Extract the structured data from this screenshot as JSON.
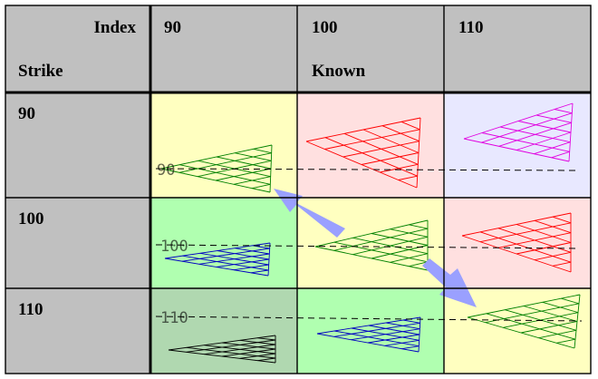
{
  "header": {
    "corner_top": "Index",
    "corner_bottom": "Strike",
    "columns": [
      {
        "label": "90",
        "sublabel": ""
      },
      {
        "label": "100",
        "sublabel": "Known"
      },
      {
        "label": "110",
        "sublabel": ""
      }
    ],
    "rows": [
      "90",
      "100",
      "110"
    ]
  },
  "cell_labels": [
    "90",
    "100",
    "110"
  ],
  "colors": {
    "header_bg": "#c0c0c0",
    "yellow": "#ffffc0",
    "pink": "#ffe0e0",
    "lavender": "#e8e8ff",
    "light_green": "#b0ffb0",
    "sage": "#b0d8b0",
    "green_line": "#008000",
    "red_line": "#ff0000",
    "magenta_line": "#e000e0",
    "blue_line": "#0000c0",
    "black_line": "#000000",
    "arrow": "#9aa0ff"
  },
  "cells": [
    [
      {
        "bg": "yellow",
        "stroke": "green_line"
      },
      {
        "bg": "pink",
        "stroke": "red_line"
      },
      {
        "bg": "lavender",
        "stroke": "magenta_line"
      }
    ],
    [
      {
        "bg": "light_green",
        "stroke": "blue_line"
      },
      {
        "bg": "yellow",
        "stroke": "green_line"
      },
      {
        "bg": "pink",
        "stroke": "red_line"
      }
    ],
    [
      {
        "bg": "sage",
        "stroke": "black_line"
      },
      {
        "bg": "light_green",
        "stroke": "blue_line"
      },
      {
        "bg": "yellow",
        "stroke": "green_line"
      }
    ]
  ]
}
